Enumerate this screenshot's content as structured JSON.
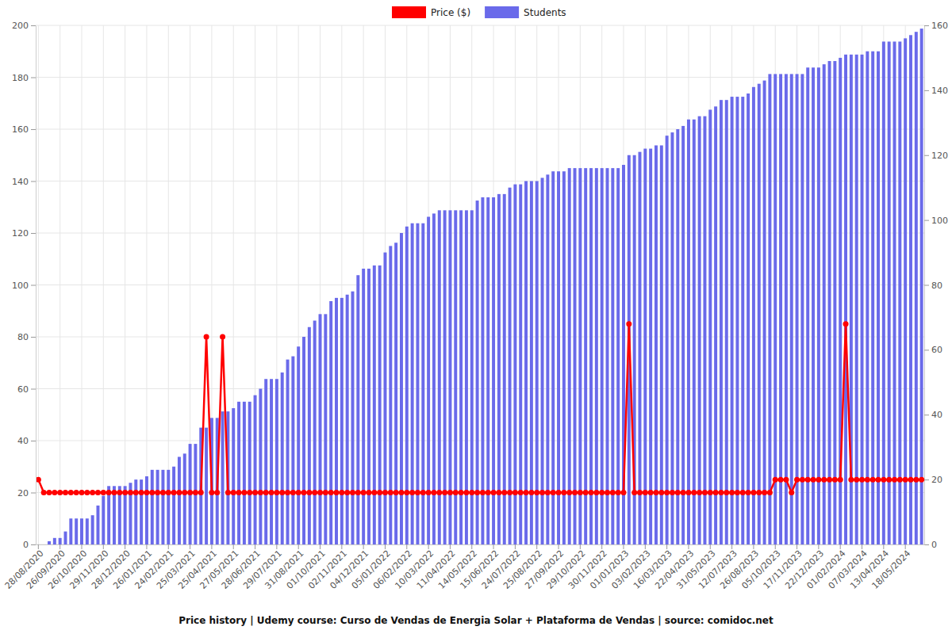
{
  "chart_data": {
    "type": "bar",
    "title": "Price history | Udemy course: Curso de Vendas de Energia Solar + Plataforma de Vendas | source: comidoc.net",
    "categories": [
      "28/08/2020",
      null,
      null,
      null,
      "26/09/2020",
      null,
      null,
      null,
      "26/10/2020",
      null,
      null,
      null,
      "29/11/2020",
      null,
      null,
      null,
      "28/12/2020",
      null,
      null,
      null,
      "26/01/2021",
      null,
      null,
      null,
      "24/02/2021",
      null,
      null,
      null,
      "25/03/2021",
      null,
      null,
      null,
      "25/04/2021",
      null,
      null,
      null,
      "27/05/2021",
      null,
      null,
      null,
      "28/06/2021",
      null,
      null,
      null,
      "29/07/2021",
      null,
      null,
      null,
      "31/08/2021",
      null,
      null,
      null,
      "01/10/2021",
      null,
      null,
      null,
      "02/11/2021",
      null,
      null,
      null,
      "04/12/2021",
      null,
      null,
      null,
      "05/01/2022",
      null,
      null,
      null,
      "06/02/2022",
      null,
      null,
      null,
      "10/03/2022",
      null,
      null,
      null,
      "11/04/2022",
      null,
      null,
      null,
      "14/05/2022",
      null,
      null,
      null,
      "15/06/2022",
      null,
      null,
      null,
      "24/07/2022",
      null,
      null,
      null,
      "25/08/2022",
      null,
      null,
      null,
      "27/09/2022",
      null,
      null,
      null,
      "29/10/2022",
      null,
      null,
      null,
      "30/11/2022",
      null,
      null,
      null,
      "01/01/2023",
      null,
      null,
      null,
      "03/02/2023",
      null,
      null,
      null,
      "16/03/2023",
      null,
      null,
      null,
      "22/04/2023",
      null,
      null,
      null,
      "31/05/2023",
      null,
      null,
      null,
      "12/07/2023",
      null,
      null,
      null,
      "26/08/2023",
      null,
      null,
      null,
      "05/10/2023",
      null,
      null,
      null,
      "17/11/2023",
      null,
      null,
      null,
      "22/12/2023",
      null,
      null,
      null,
      "01/02/2024",
      null,
      null,
      null,
      "07/03/2024",
      null,
      null,
      null,
      "13/04/2024",
      null,
      null,
      null,
      "18/05/2024",
      null,
      null,
      null
    ],
    "series": [
      {
        "name": "Price ($)",
        "type": "line",
        "color": "#ff0000",
        "marker": "circle",
        "values": [
          25,
          20,
          20,
          20,
          20,
          20,
          20,
          20,
          20,
          20,
          20,
          20,
          20,
          20,
          20,
          20,
          20,
          20,
          20,
          20,
          20,
          20,
          20,
          20,
          20,
          20,
          20,
          20,
          20,
          20,
          20,
          80,
          20,
          20,
          80,
          20,
          20,
          20,
          20,
          20,
          20,
          20,
          20,
          20,
          20,
          20,
          20,
          20,
          20,
          20,
          20,
          20,
          20,
          20,
          20,
          20,
          20,
          20,
          20,
          20,
          20,
          20,
          20,
          20,
          20,
          20,
          20,
          20,
          20,
          20,
          20,
          20,
          20,
          20,
          20,
          20,
          20,
          20,
          20,
          20,
          20,
          20,
          20,
          20,
          20,
          20,
          20,
          20,
          20,
          20,
          20,
          20,
          20,
          20,
          20,
          20,
          20,
          20,
          20,
          20,
          20,
          20,
          20,
          20,
          20,
          20,
          20,
          20,
          20,
          85,
          20,
          20,
          20,
          20,
          20,
          20,
          20,
          20,
          20,
          20,
          20,
          20,
          20,
          20,
          20,
          20,
          20,
          20,
          20,
          20,
          20,
          20,
          20,
          20,
          20,
          20,
          25,
          25,
          25,
          20,
          25,
          25,
          25,
          25,
          25,
          25,
          25,
          25,
          25,
          85,
          25,
          25,
          25,
          25,
          25,
          25,
          25,
          25,
          25,
          25,
          25,
          25,
          25,
          25
        ]
      },
      {
        "name": "Students",
        "type": "bar",
        "axis": "y2",
        "color": "#6a6aea",
        "values": [
          0,
          0,
          1,
          2,
          2,
          4,
          8,
          8,
          8,
          8,
          9,
          12,
          15,
          18,
          18,
          18,
          18,
          19,
          20,
          20,
          21,
          23,
          23,
          23,
          23,
          24,
          27,
          28,
          31,
          31,
          36,
          36,
          39,
          39,
          41,
          41,
          42,
          44,
          44,
          44,
          46,
          48,
          51,
          51,
          51,
          53,
          57,
          58,
          61,
          64,
          67,
          69,
          71,
          71,
          75,
          76,
          76,
          77,
          78,
          83,
          85,
          85,
          86,
          86,
          90,
          92,
          93,
          96,
          98,
          99,
          99,
          99,
          101,
          102,
          103,
          103,
          103,
          103,
          103,
          103,
          103,
          106,
          107,
          107,
          107,
          108,
          108,
          110,
          111,
          111,
          112,
          112,
          112,
          113,
          114,
          115,
          115,
          115,
          116,
          116,
          116,
          116,
          116,
          116,
          116,
          116,
          116,
          116,
          117,
          120,
          120,
          121,
          122,
          122,
          123,
          123,
          126,
          127,
          128,
          129,
          131,
          131,
          132,
          132,
          134,
          135,
          137,
          137,
          138,
          138,
          138,
          139,
          141,
          142,
          143,
          145,
          145,
          145,
          145,
          145,
          145,
          145,
          147,
          147,
          147,
          148,
          149,
          149,
          150,
          151,
          151,
          151,
          151,
          152,
          152,
          152,
          155,
          155,
          155,
          155,
          156,
          157,
          158,
          159
        ]
      }
    ],
    "ylim": [
      0,
      200
    ],
    "yticks": [
      0,
      20,
      40,
      60,
      80,
      100,
      120,
      140,
      160,
      180,
      200
    ],
    "y2lim": [
      0,
      160
    ],
    "y2ticks": [
      0,
      20,
      40,
      60,
      80,
      100,
      120,
      140,
      160
    ],
    "grid": true,
    "legend": "top"
  }
}
